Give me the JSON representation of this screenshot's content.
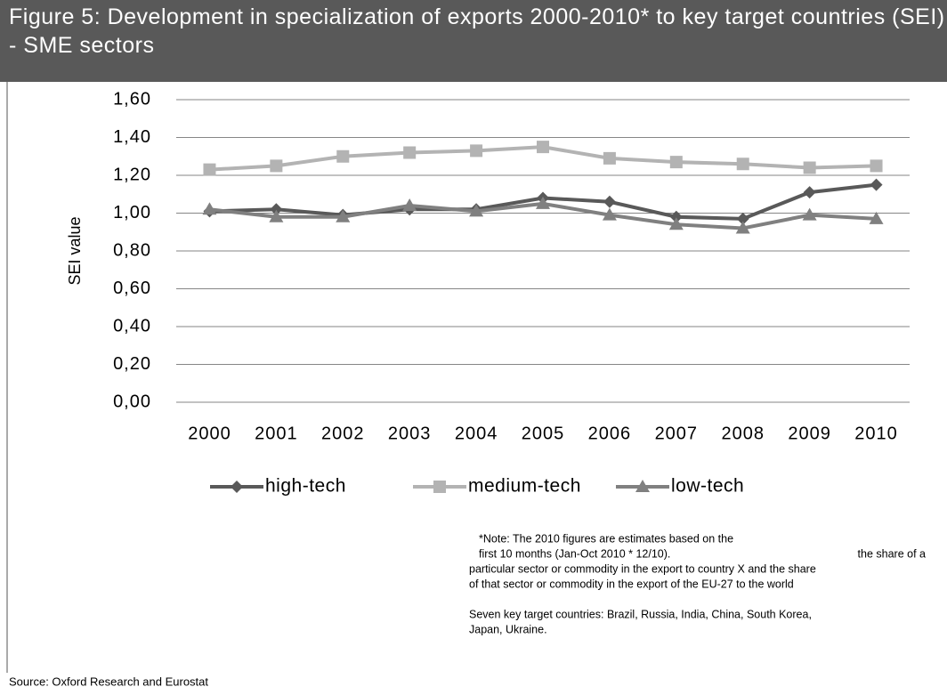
{
  "chart_data": {
    "type": "line",
    "title": "Figure 5: Development in specialization of exports 2000-2010* to key target countries (SEI) - SME sectors",
    "y_label": "SEI value",
    "categories": [
      "2000",
      "2001",
      "2002",
      "2003",
      "2004",
      "2005",
      "2006",
      "2007",
      "2008",
      "2009",
      "2010"
    ],
    "series": [
      {
        "name": "high-tech",
        "color": "#595959",
        "marker": "diamond",
        "values": [
          1.01,
          1.02,
          0.99,
          1.02,
          1.02,
          1.08,
          1.06,
          0.98,
          0.97,
          1.11,
          1.15
        ]
      },
      {
        "name": "medium-tech",
        "color": "#b3b3b3",
        "marker": "square",
        "values": [
          1.23,
          1.25,
          1.3,
          1.32,
          1.33,
          1.35,
          1.29,
          1.27,
          1.26,
          1.24,
          1.25
        ]
      },
      {
        "name": "low-tech",
        "color": "#808080",
        "marker": "triangle",
        "values": [
          1.02,
          0.98,
          0.98,
          1.04,
          1.01,
          1.05,
          0.99,
          0.94,
          0.92,
          0.99,
          0.97
        ]
      }
    ],
    "ylim": [
      0,
      1.6
    ],
    "yticks": [
      {
        "value": 0,
        "label": "0,00"
      },
      {
        "value": 0.2,
        "label": "0,20"
      },
      {
        "value": 0.4,
        "label": "0,40"
      },
      {
        "value": 0.6,
        "label": "0,60"
      },
      {
        "value": 0.8,
        "label": "0,80"
      },
      {
        "value": 1,
        "label": "1,00"
      },
      {
        "value": 1.2,
        "label": "1,20"
      },
      {
        "value": 1.4,
        "label": "1,40"
      },
      {
        "value": 1.6,
        "label": "1,60"
      }
    ],
    "grid": true,
    "legend": "bottom",
    "notes": [
      "*Note: The 2010 figures are estimates based on the",
      "first 10 months (Jan-Oct 2010 * 12/10).",
      "the share of a",
      "particular sector or commodity in the export to country X and the share",
      "of that sector or commodity in the export of the EU-27 to the world",
      "Seven key target countries: Brazil, Russia, India, China, South Korea,",
      "Japan, Ukraine."
    ],
    "source": "Source: Oxford Research and Eurostat"
  }
}
